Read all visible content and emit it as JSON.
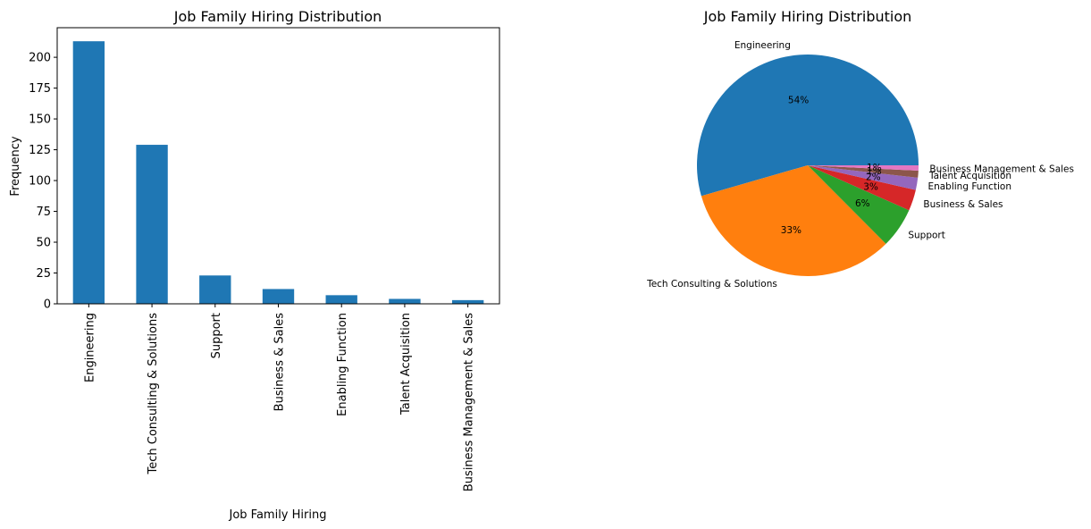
{
  "chart_data": [
    {
      "type": "bar",
      "title": "Job Family Hiring Distribution",
      "xlabel": "Job Family Hiring",
      "ylabel": "Frequency",
      "ylim": [
        0,
        224
      ],
      "yticks": [
        "0",
        "25",
        "50",
        "75",
        "100",
        "125",
        "150",
        "175",
        "200"
      ],
      "categories": [
        "Engineering",
        "Tech Consulting & Solutions",
        "Support",
        "Business & Sales",
        "Enabling Function",
        "Talent Acquisition",
        "Business Management & Sales"
      ],
      "values": [
        213,
        129,
        23,
        12,
        7,
        4,
        3
      ],
      "color": "#1f77b4",
      "grid": false
    },
    {
      "type": "pie",
      "title": "Job Family Hiring Distribution",
      "labels": [
        "Engineering",
        "Tech Consulting & Solutions",
        "Support",
        "Business & Sales",
        "Enabling Function",
        "Talent Acquisition",
        "Business Management & Sales"
      ],
      "values": [
        213,
        129,
        23,
        12,
        7,
        4,
        3
      ],
      "percent_labels": [
        "54%",
        "33%",
        "6%",
        "3%",
        "2%",
        "1%",
        "1%"
      ],
      "colors": [
        "#1f77b4",
        "#ff7f0e",
        "#2ca02c",
        "#d62728",
        "#9467bd",
        "#8c564b",
        "#e377c2"
      ]
    }
  ]
}
